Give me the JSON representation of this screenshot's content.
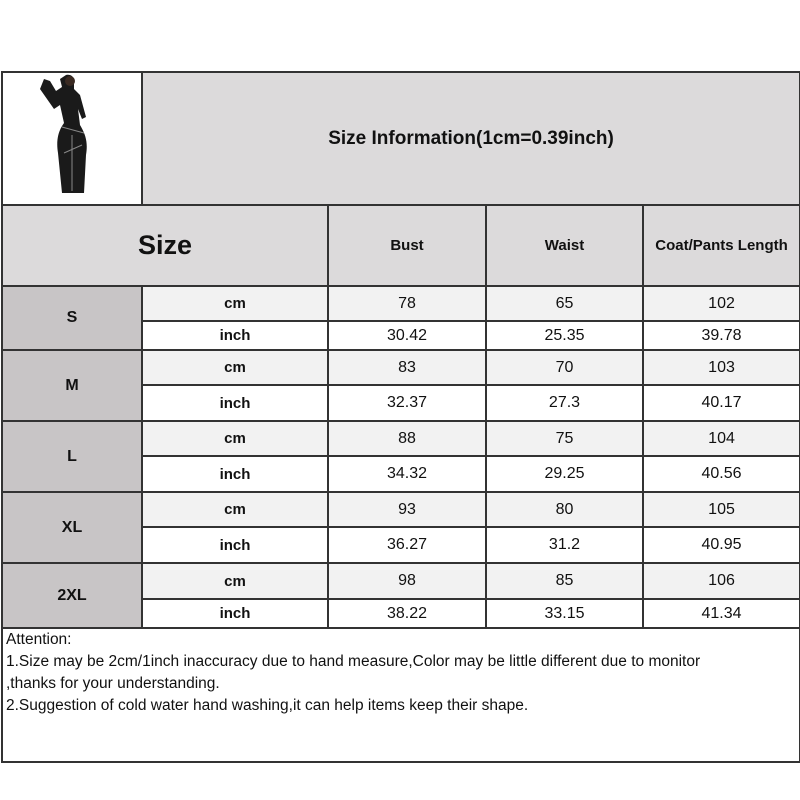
{
  "title": "Size Information(1cm=0.39inch)",
  "size_header": "Size",
  "columns": [
    "Bust",
    "Waist",
    "Coat/Pants Length"
  ],
  "rows": [
    {
      "size": "S",
      "cm": [
        "78",
        "65",
        "102"
      ],
      "inch": [
        "30.42",
        "25.35",
        "39.78"
      ]
    },
    {
      "size": "M",
      "cm": [
        "83",
        "70",
        "103"
      ],
      "inch": [
        "32.37",
        "27.3",
        "40.17"
      ]
    },
    {
      "size": "L",
      "cm": [
        "88",
        "75",
        "104"
      ],
      "inch": [
        "34.32",
        "29.25",
        "40.56"
      ]
    },
    {
      "size": "XL",
      "cm": [
        "93",
        "80",
        "105"
      ],
      "inch": [
        "36.27",
        "31.2",
        "40.95"
      ]
    },
    {
      "size": "2XL",
      "cm": [
        "98",
        "85",
        "106"
      ],
      "inch": [
        "38.22",
        "33.15",
        "41.34"
      ]
    }
  ],
  "unit_cm": "cm",
  "unit_inch": "inch",
  "attention": {
    "heading": "Attention:",
    "line1": "1.Size may be 2cm/1inch inaccuracy due to hand measure,Color may be little different due to monitor",
    "line1b": ",thanks for your understanding.",
    "line2": "2.Suggestion of cold water hand washing,it can help items keep their shape."
  }
}
